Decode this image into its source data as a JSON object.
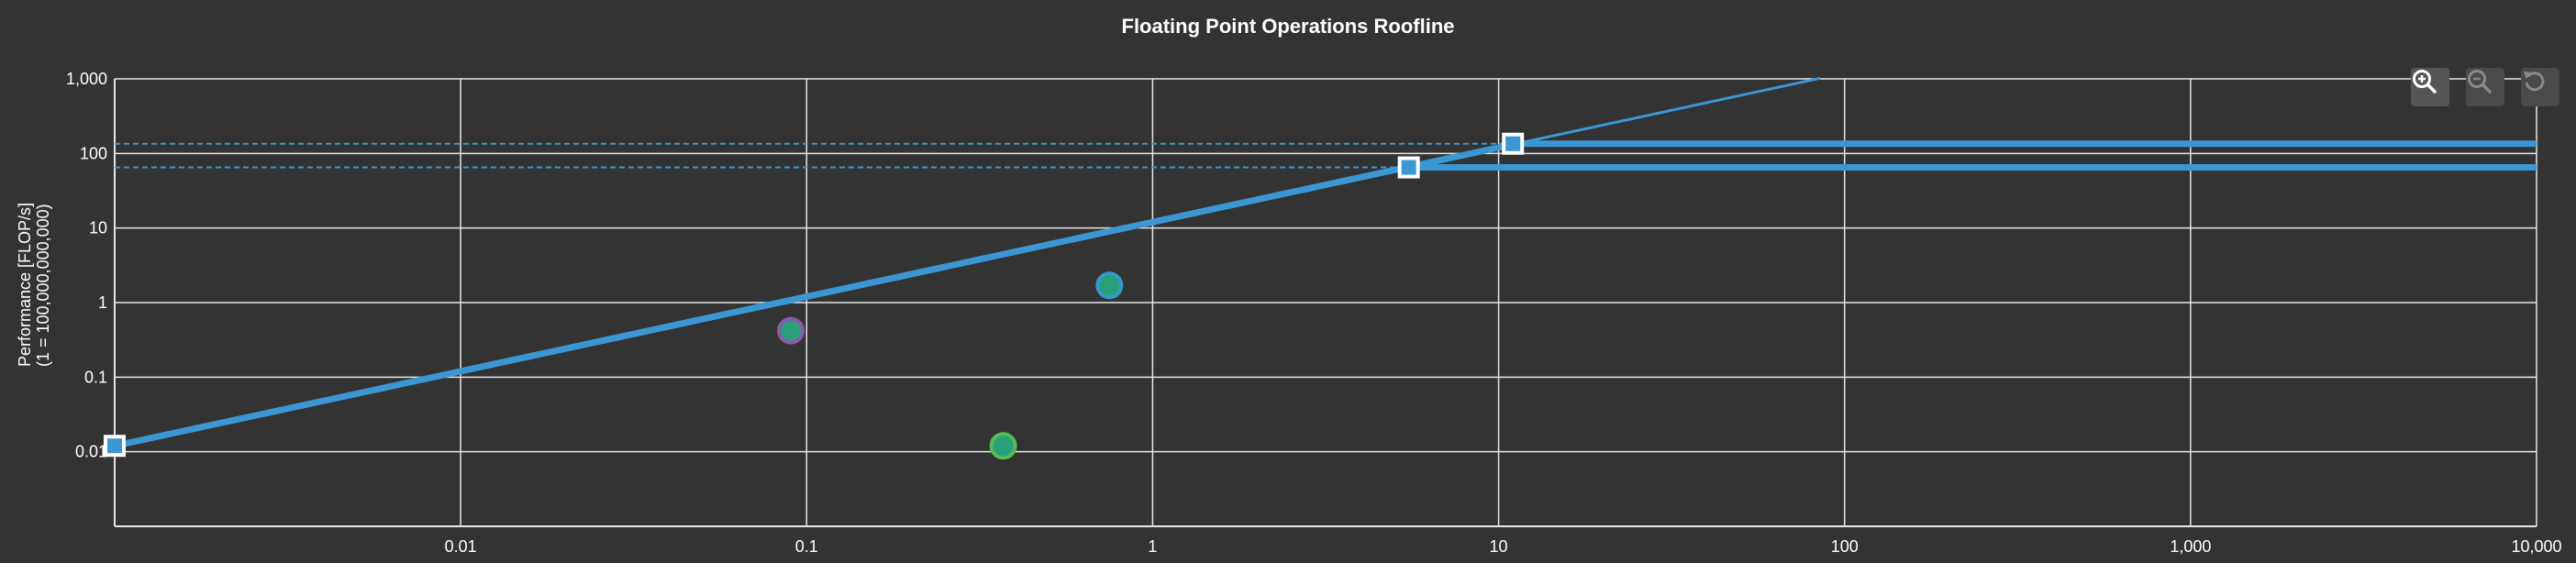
{
  "chart_data": {
    "type": "scatter",
    "title": "Floating Point Operations Roofline",
    "xlabel": "",
    "ylabel_line1": "Performance [FLOP/s]",
    "ylabel_line2": "(1 = 100,000,000,000)",
    "x_scale": "log",
    "y_scale": "log",
    "xlim": [
      0.001,
      10000
    ],
    "ylim": [
      0.001,
      1000
    ],
    "x_ticks": [
      0.01,
      0.1,
      1,
      10,
      100,
      1000,
      10000
    ],
    "x_tick_labels": [
      "0.01",
      "0.1",
      "1",
      "10",
      "100",
      "1,000",
      "10,000"
    ],
    "y_ticks": [
      0.01,
      0.1,
      1,
      10,
      100,
      1000
    ],
    "y_tick_labels": [
      "0.01",
      "0.1",
      "1",
      "10",
      "100",
      "1,000"
    ],
    "grid": true,
    "roof_lines": {
      "bandwidth": {
        "x": [
          0.001,
          85
        ],
        "y": [
          0.012,
          1020
        ]
      },
      "peaks": [
        {
          "ridge_x": 11,
          "y": 135
        },
        {
          "ridge_x": 5.5,
          "y": 65
        }
      ]
    },
    "points": [
      {
        "x": 0.09,
        "y": 0.42,
        "fill": "#2aa07a",
        "stroke": "#8a5aaa"
      },
      {
        "x": 0.37,
        "y": 0.012,
        "fill": "#2aa07a",
        "stroke": "#55bb55"
      },
      {
        "x": 0.75,
        "y": 1.7,
        "fill": "#2aa07a",
        "stroke": "#3399cc"
      }
    ],
    "colors": {
      "roof": "#3a97d3",
      "grid": "#e6e6e6",
      "background": "#333333"
    }
  },
  "toolbar": {
    "zoom_in": "zoom-in-icon",
    "zoom_out": "zoom-out-icon",
    "reset": "reset-icon"
  }
}
